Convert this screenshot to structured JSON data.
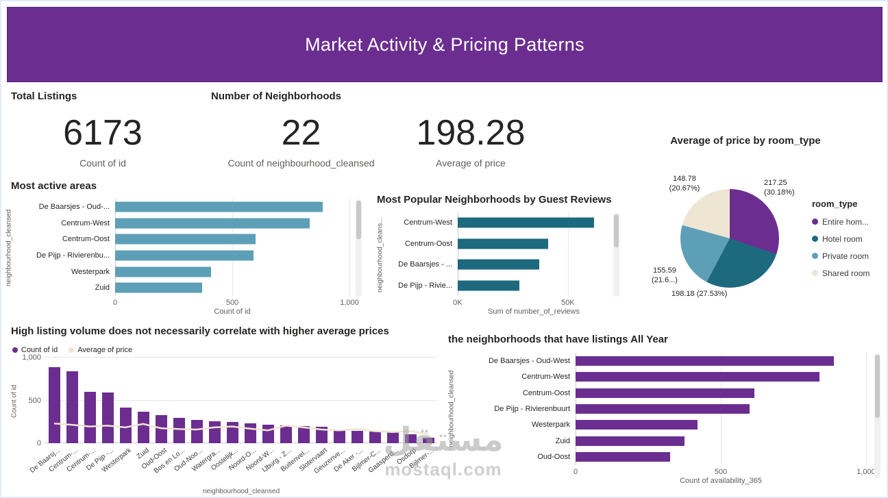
{
  "header": {
    "title": "Market Activity & Pricing Patterns"
  },
  "watermark": {
    "arabic": "مستقل",
    "latin": "mostaql.com"
  },
  "kpis": [
    {
      "label": "Total Listings",
      "value": "6173",
      "sub": "Count of id"
    },
    {
      "label": "Number of Neighborhoods",
      "value": "22",
      "sub": "Count of neighbourhood_cleansed"
    },
    {
      "label": "",
      "value": "198.28",
      "sub": "Average of price"
    }
  ],
  "colors": {
    "purple": "#6B2E90",
    "teal": "#1D6A7E",
    "blue": "#5E9FB8",
    "cream": "#EFE5D3"
  },
  "chart_data": [
    {
      "id": "most_active_areas",
      "type": "bar",
      "orientation": "horizontal",
      "title": "Most active areas",
      "categories": [
        "De Baarsjes - Oud-...",
        "Centrum-West",
        "Centrum-Oost",
        "De Pijp - Rivierenbu...",
        "Westerpark",
        "Zuid"
      ],
      "values": [
        885,
        830,
        600,
        590,
        410,
        370
      ],
      "xlabel": "Count of id",
      "ylabel": "neighbourhood_cleansed",
      "xlim": [
        0,
        1000
      ],
      "xticks": [
        {
          "label": "0",
          "value": 0
        },
        {
          "label": "500",
          "value": 500
        },
        {
          "label": "1,000",
          "value": 1000
        }
      ],
      "grid": true,
      "color": "#5E9FB8"
    },
    {
      "id": "popular_by_reviews",
      "type": "bar",
      "orientation": "horizontal",
      "title": "Most Popular Neighborhoods by Guest Reviews",
      "categories": [
        "Centrum-West",
        "Centrum-Oost",
        "De Baarsjes - ...",
        "De Pijp - Rivie..."
      ],
      "values": [
        62000,
        41000,
        37000,
        28000
      ],
      "xlabel": "Sum of number_of_reviews",
      "ylabel": "neighbourhood_cleans...",
      "xlim": [
        0,
        69000
      ],
      "xticks": [
        {
          "label": "0K",
          "value": 0
        },
        {
          "label": "50K",
          "value": 50000
        }
      ],
      "grid": true,
      "color": "#1D6A7E"
    },
    {
      "id": "price_by_room_type",
      "type": "pie",
      "title": "Average of price by room_type",
      "legend_title": "room_type",
      "legend_position": "right",
      "slices": [
        {
          "name": "Entire hom...",
          "value": 217.25,
          "pct": 30.18,
          "value_label": "217.25",
          "pct_label": "(30.18%)",
          "color": "#6B2E90"
        },
        {
          "name": "Hotel room",
          "value": 198.18,
          "pct": 27.53,
          "value_label": "198.18",
          "pct_label": "(27.53%)",
          "color": "#1D6A7E"
        },
        {
          "name": "Private room",
          "value": 155.59,
          "pct": 21.62,
          "value_label": "155.59",
          "pct_label": "(21.6...)",
          "color": "#5E9FB8"
        },
        {
          "name": "Shared room",
          "value": 148.78,
          "pct": 20.67,
          "value_label": "148.78",
          "pct_label": "(20.67%)",
          "color": "#EFE5D3"
        }
      ]
    },
    {
      "id": "volume_vs_price",
      "type": "bar",
      "subtype": "combo-bar-line",
      "title": "High listing volume does not necessarily correlate with higher average prices",
      "categories": [
        "De Baarsj...",
        "Centrum-...",
        "Centrum-...",
        "De Pijp -...",
        "Westerpark",
        "Zuid",
        "Oud-Oost",
        "Bos en Lo...",
        "Oud-Noo...",
        "Watergra...",
        "Oostelijk...",
        "Noord-O...",
        "Noord-W...",
        "IJburg - Z...",
        "Buitenvel...",
        "Slotervaart",
        "Geuzenve...",
        "De Aker -...",
        "Bijlmer-C...",
        "Gaasperd...",
        "Osdorp",
        "Bijlmer-..."
      ],
      "series": [
        {
          "name": "Count of id",
          "kind": "bar",
          "color": "#6B2E90",
          "values": [
            890,
            840,
            600,
            590,
            420,
            370,
            330,
            300,
            270,
            255,
            245,
            235,
            220,
            210,
            200,
            190,
            160,
            145,
            135,
            125,
            105,
            65
          ]
        },
        {
          "name": "Average of price",
          "kind": "line",
          "color": "#EFE5D3",
          "values": [
            230,
            215,
            195,
            205,
            185,
            225,
            175,
            165,
            160,
            185,
            195,
            170,
            150,
            205,
            185,
            160,
            150,
            165,
            140,
            130,
            140,
            110
          ]
        }
      ],
      "ylabel": "Count of id",
      "xlabel": "neighbourhood_cleansed",
      "ylim": [
        0,
        1000
      ],
      "yticks": [
        {
          "label": "1,000",
          "value": 1000
        },
        {
          "label": "500",
          "value": 500
        },
        {
          "label": "0",
          "value": 0
        }
      ],
      "grid": true,
      "legend_position": "top-left"
    },
    {
      "id": "all_year_listings",
      "type": "bar",
      "orientation": "horizontal",
      "title": "the neighborhoods that have listings All Year",
      "categories": [
        "De Baarsjes - Oud-West",
        "Centrum-West",
        "Centrum-Oost",
        "De Pijp - Rivierenbuurt",
        "Westerpark",
        "Zuid",
        "Oud-Oost"
      ],
      "values": [
        890,
        840,
        615,
        600,
        420,
        375,
        325
      ],
      "xlabel": "Count of availability_365",
      "ylabel": "neighbourhood_cleansed",
      "xlim": [
        0,
        1000
      ],
      "xticks": [
        {
          "label": "0",
          "value": 0
        },
        {
          "label": "500",
          "value": 500
        },
        {
          "label": "1,000",
          "value": 1000
        }
      ],
      "grid": true,
      "color": "#6B2E90"
    }
  ]
}
